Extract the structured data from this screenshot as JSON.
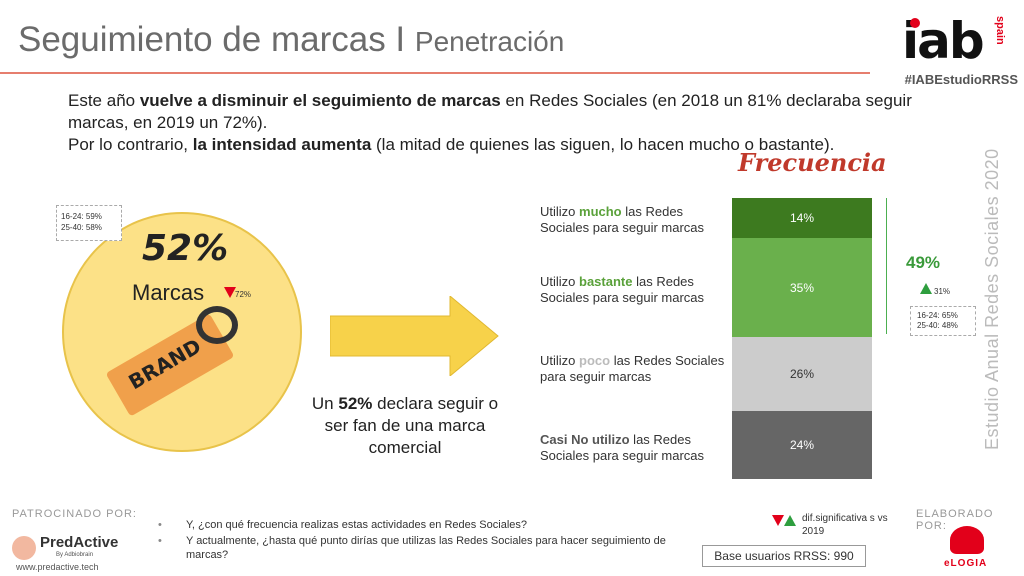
{
  "header": {
    "title": "Seguimiento de marcas",
    "separator": " I ",
    "subtitle": "Penetración",
    "hashtag": "#IABEstudioRRSS"
  },
  "logo": {
    "main": "iab",
    "sub": "spain"
  },
  "intro": {
    "line1_pre": "Este año ",
    "line1_bold": "vuelve a disminuir el seguimiento de marcas",
    "line1_post": " en Redes Sociales (en 2018 un 81% declaraba seguir marcas, en 2019 un 72%).",
    "line2_pre": "Por lo contrario, ",
    "line2_bold": "la intensidad aumenta",
    "line2_post": " (la mitad de quienes las siguen, lo hacen mucho o bastante)."
  },
  "section_title": "Frecuencia",
  "side_text": "Estudio Anual Redes Sociales 2020",
  "penetration": {
    "value": "52%",
    "label": "Marcas",
    "diff": "72%",
    "ages_1": "16-24: 59%",
    "ages_2": "25-40: 58%",
    "tag_text": "BRAND"
  },
  "caption": {
    "pre": "Un ",
    "bold": "52%",
    "post": " declara seguir o ser fan de una marca comercial"
  },
  "rows": [
    {
      "pre": "Utilizo ",
      "hl": "mucho",
      "post": " las Redes Sociales para seguir marcas"
    },
    {
      "pre": "Utilizo ",
      "hl": "bastante",
      "post": " las Redes Sociales para seguir marcas"
    },
    {
      "pre": "Utilizo ",
      "hl": "poco",
      "post": " las Redes Sociales para seguir marcas"
    },
    {
      "pre": "",
      "hl": "Casi No utilizo",
      "post": " las Redes Sociales para seguir marcas"
    }
  ],
  "chart_data": {
    "type": "bar",
    "stacked": true,
    "categories": [
      "mucho",
      "bastante",
      "poco",
      "Casi No utilizo"
    ],
    "values": [
      14,
      35,
      26,
      24
    ],
    "labels": [
      "14%",
      "35%",
      "26%",
      "24%"
    ],
    "colors": [
      "#3d7a1f",
      "#6ab04c",
      "#cccccc",
      "#666666"
    ],
    "grouped_total": "49%",
    "grouped_diff": "31%",
    "grouped_ages_1": "16-24: 65%",
    "grouped_ages_2": "25-40: 48%"
  },
  "footer": {
    "sponsor_label": "PATROCINADO POR:",
    "sponsor_name": "PredActive",
    "sponsor_by": "By Adbiobrain",
    "sponsor_url": "www.predactive.tech",
    "questions": [
      "Y, ¿con qué frecuencia realizas estas actividades en Redes Sociales?",
      "Y actualmente, ¿hasta qué punto dirías que utilizas las Redes Sociales para hacer seguimiento de marcas?"
    ],
    "legend": "dif.significativa s vs 2019",
    "base": "Base usuarios RRSS: 990",
    "made_by_label": "ELABORADO POR:",
    "made_by_name": "eLOGIA"
  }
}
